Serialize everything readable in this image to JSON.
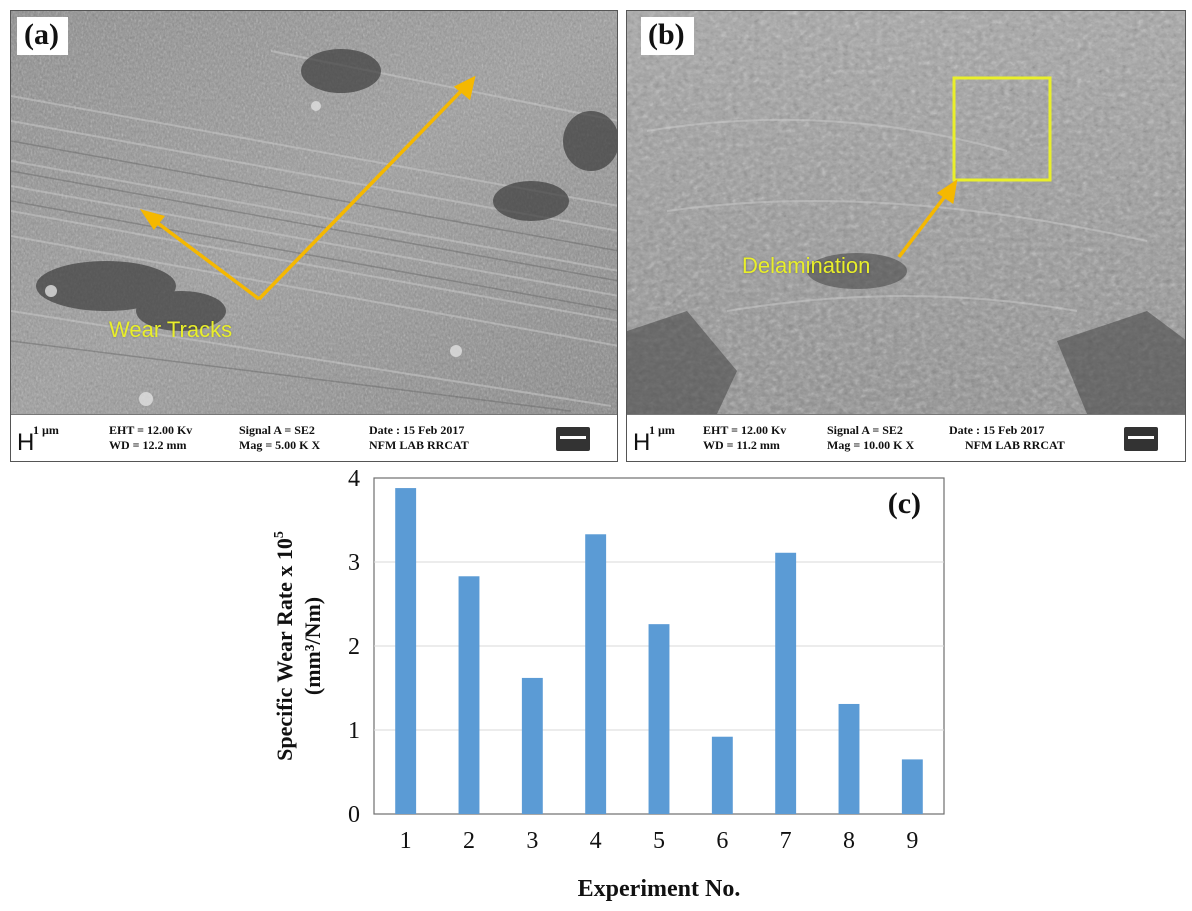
{
  "panel_a": {
    "label": "(a)",
    "annotation": "Wear Tracks",
    "info": {
      "scale_unit": "1 µm",
      "scale_glyph": "H",
      "eht": "EHT = 12.00 Kv",
      "wd": "WD = 12.2 mm",
      "signal": "Signal A = SE2",
      "mag": "Mag = 5.00 K X",
      "date": "Date : 15 Feb 2017",
      "lab": "NFM LAB RRCAT"
    }
  },
  "panel_b": {
    "label": "(b)",
    "annotation": "Delamination",
    "info": {
      "scale_unit": "1 µm",
      "scale_glyph": "H",
      "eht": "EHT = 12.00 Kv",
      "wd": "WD = 11.2 mm",
      "signal": "Signal A = SE2",
      "mag": "Mag = 10.00 K X",
      "date": "Date : 15 Feb 2017",
      "lab": "NFM LAB RRCAT"
    }
  },
  "colors": {
    "arrow": "#f5b800",
    "annotation_text": "#e9ef2a",
    "bar": "#5b9bd5"
  },
  "chart_data": {
    "type": "bar",
    "panel_label": "(c)",
    "categories": [
      "1",
      "2",
      "3",
      "4",
      "5",
      "6",
      "7",
      "8",
      "9"
    ],
    "values": [
      3.88,
      2.83,
      1.62,
      3.33,
      2.26,
      0.92,
      3.11,
      1.31,
      0.65
    ],
    "xlabel": "Experiment No.",
    "ylabel_line1": "Specific Wear Rate x 10",
    "ylabel_sup": "5",
    "ylabel_line2": "(mm³/Nm)",
    "ylim": [
      0,
      4
    ],
    "yticks": [
      "0",
      "1",
      "2",
      "3",
      "4"
    ],
    "grid": true
  }
}
